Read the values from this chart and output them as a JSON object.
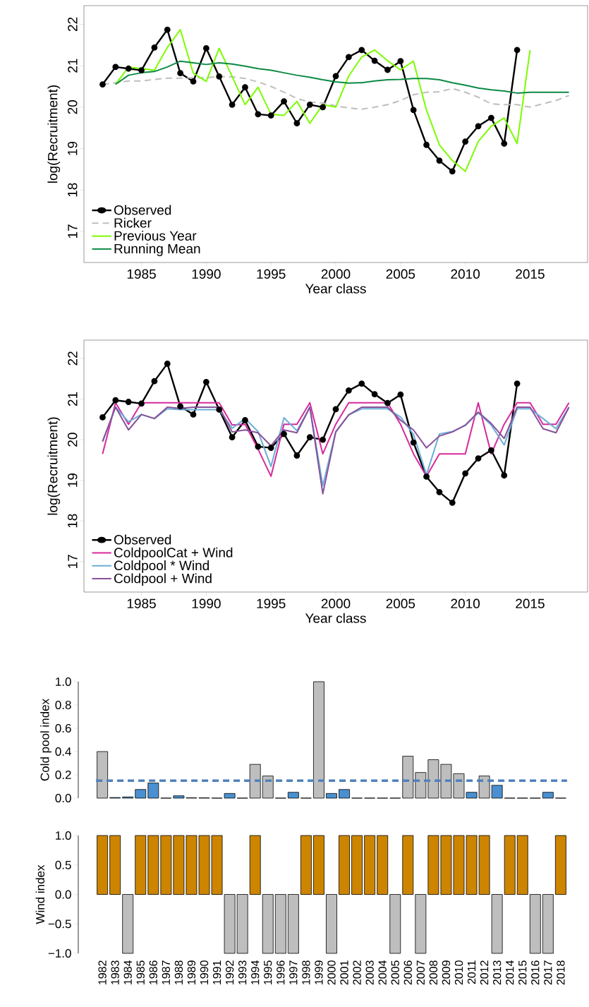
{
  "chart_data": [
    {
      "type": "line",
      "xlabel": "Year class",
      "ylabel": "log(Recruitment)",
      "legend": "bottom left",
      "x": [
        1982,
        1983,
        1984,
        1985,
        1986,
        1987,
        1988,
        1989,
        1990,
        1991,
        1992,
        1993,
        1994,
        1995,
        1996,
        1997,
        1998,
        1999,
        2000,
        2001,
        2002,
        2003,
        2004,
        2005,
        2006,
        2007,
        2008,
        2009,
        2010,
        2011,
        2012,
        2013,
        2014,
        2015,
        2016,
        2017,
        2018
      ],
      "xlim": [
        1980.56,
        2019.44
      ],
      "ylim": [
        16.25,
        22.45
      ],
      "xticks": [
        1985,
        1990,
        1995,
        2000,
        2005,
        2010,
        2015
      ],
      "yticks": [
        17,
        18,
        19,
        20,
        21,
        22
      ],
      "series": [
        {
          "name": "Observed",
          "color": "#000000",
          "marker": "circle",
          "x": [
            1982,
            1983,
            1984,
            1985,
            1986,
            1987,
            1988,
            1989,
            1990,
            1991,
            1992,
            1993,
            1994,
            1995,
            1996,
            1997,
            1998,
            1999,
            2000,
            2001,
            2002,
            2003,
            2004,
            2005,
            2006,
            2007,
            2008,
            2009,
            2010,
            2011,
            2012,
            2013,
            2014
          ],
          "values": [
            20.55,
            20.97,
            20.93,
            20.89,
            21.44,
            21.87,
            20.82,
            20.62,
            21.42,
            20.74,
            20.06,
            20.48,
            19.83,
            19.8,
            20.14,
            19.61,
            20.06,
            20.0,
            20.75,
            21.21,
            21.38,
            21.12,
            20.9,
            21.11,
            19.93,
            19.09,
            18.71,
            18.45,
            19.17,
            19.54,
            19.74,
            19.12,
            21.38
          ]
        },
        {
          "name": "Ricker",
          "color": "#bebebe",
          "line_style": "dashed",
          "values": [
            20.55,
            20.59,
            20.63,
            20.63,
            20.67,
            20.7,
            20.7,
            20.71,
            20.71,
            20.74,
            20.73,
            20.69,
            20.61,
            20.5,
            20.36,
            20.21,
            20.12,
            20.1,
            20.03,
            19.98,
            19.95,
            20.0,
            20.06,
            20.16,
            20.3,
            20.36,
            20.37,
            20.45,
            20.36,
            20.24,
            20.08,
            20.06,
            20.06,
            20.0,
            20.08,
            20.16,
            20.28
          ]
        },
        {
          "name": "Previous Year",
          "color": "#7cfc00",
          "x": [
            1983,
            1984,
            1985,
            1986,
            1987,
            1988,
            1989,
            1990,
            1991,
            1992,
            1993,
            1994,
            1995,
            1996,
            1997,
            1998,
            1999,
            2000,
            2001,
            2002,
            2003,
            2004,
            2005,
            2006,
            2007,
            2008,
            2009,
            2010,
            2011,
            2012,
            2013,
            2014,
            2015
          ],
          "values": [
            20.55,
            20.97,
            20.93,
            20.89,
            21.44,
            21.87,
            20.82,
            20.62,
            21.42,
            20.74,
            20.06,
            20.48,
            19.83,
            19.8,
            20.14,
            19.61,
            20.06,
            20.0,
            20.75,
            21.21,
            21.38,
            21.12,
            20.9,
            21.11,
            19.93,
            19.09,
            18.71,
            18.45,
            19.17,
            19.54,
            19.74,
            19.12,
            21.38
          ]
        },
        {
          "name": "Running Mean",
          "color": "#0c8a44",
          "x": [
            1983,
            1984,
            1985,
            1986,
            1987,
            1988,
            1989,
            1990,
            1991,
            1992,
            1993,
            1994,
            1995,
            1996,
            1997,
            1998,
            1999,
            2000,
            2001,
            2002,
            2003,
            2004,
            2005,
            2006,
            2007,
            2008,
            2009,
            2010,
            2011,
            2012,
            2013,
            2014,
            2015,
            2016,
            2017,
            2018
          ],
          "values": [
            20.55,
            20.77,
            20.83,
            20.86,
            20.97,
            21.11,
            21.07,
            21.03,
            21.07,
            21.04,
            20.99,
            20.93,
            20.89,
            20.83,
            20.77,
            20.72,
            20.66,
            20.61,
            20.58,
            20.59,
            20.63,
            20.66,
            20.67,
            20.69,
            20.69,
            20.66,
            20.59,
            20.53,
            20.46,
            20.42,
            20.39,
            20.34,
            20.36,
            20.36,
            20.36,
            20.36
          ]
        }
      ]
    },
    {
      "type": "line",
      "xlabel": "Year class",
      "ylabel": "log(Recruitment)",
      "legend": "bottom left",
      "x": [
        1982,
        1983,
        1984,
        1985,
        1986,
        1987,
        1988,
        1989,
        1990,
        1991,
        1992,
        1993,
        1994,
        1995,
        1996,
        1997,
        1998,
        1999,
        2000,
        2001,
        2002,
        2003,
        2004,
        2005,
        2006,
        2007,
        2008,
        2009,
        2010,
        2011,
        2012,
        2013,
        2014,
        2015,
        2016,
        2017,
        2018
      ],
      "xlim": [
        1980.56,
        2019.44
      ],
      "ylim": [
        16.25,
        22.45
      ],
      "xticks": [
        1985,
        1990,
        1995,
        2000,
        2005,
        2010,
        2015
      ],
      "yticks": [
        17,
        18,
        19,
        20,
        21,
        22
      ],
      "series": [
        {
          "name": "Observed",
          "color": "#000000",
          "marker": "circle",
          "x": [
            1982,
            1983,
            1984,
            1985,
            1986,
            1987,
            1988,
            1989,
            1990,
            1991,
            1992,
            1993,
            1994,
            1995,
            1996,
            1997,
            1998,
            1999,
            2000,
            2001,
            2002,
            2003,
            2004,
            2005,
            2006,
            2007,
            2008,
            2009,
            2010,
            2011,
            2012,
            2013,
            2014
          ],
          "values": [
            20.55,
            20.97,
            20.93,
            20.89,
            21.44,
            21.87,
            20.82,
            20.62,
            21.42,
            20.74,
            20.06,
            20.48,
            19.83,
            19.8,
            20.14,
            19.61,
            20.06,
            20.0,
            20.75,
            21.21,
            21.38,
            21.12,
            20.9,
            21.11,
            19.93,
            19.09,
            18.71,
            18.45,
            19.17,
            19.54,
            19.74,
            19.12,
            21.38
          ]
        },
        {
          "name": "ColdpoolCat + Wind",
          "color": "#d62a9c",
          "values": [
            19.65,
            20.91,
            20.38,
            20.91,
            20.91,
            20.91,
            20.91,
            20.91,
            20.91,
            20.91,
            20.36,
            20.38,
            19.77,
            19.1,
            20.38,
            20.38,
            20.91,
            19.65,
            20.38,
            20.91,
            20.91,
            20.91,
            20.91,
            20.38,
            19.65,
            19.1,
            19.65,
            19.65,
            19.65,
            20.91,
            19.65,
            20.38,
            20.91,
            20.91,
            20.38,
            20.38,
            20.91
          ]
        },
        {
          "name": "Coldpool * Wind",
          "color": "#6baed6",
          "values": [
            19.97,
            20.8,
            20.44,
            20.62,
            20.52,
            20.76,
            20.74,
            20.74,
            20.74,
            20.74,
            20.28,
            20.52,
            20.2,
            19.34,
            20.54,
            20.22,
            20.8,
            18.87,
            20.2,
            20.61,
            20.76,
            20.76,
            20.76,
            20.56,
            20.13,
            19.14,
            20.14,
            20.2,
            20.35,
            20.66,
            20.36,
            19.87,
            20.76,
            20.76,
            20.52,
            20.27,
            20.8
          ]
        },
        {
          "name": "Coldpool + Wind",
          "color": "#88519a",
          "values": [
            19.95,
            20.8,
            20.24,
            20.62,
            20.52,
            20.8,
            20.77,
            20.8,
            20.8,
            20.8,
            20.19,
            20.24,
            20.17,
            19.85,
            20.24,
            20.17,
            20.8,
            18.67,
            20.19,
            20.61,
            20.8,
            20.8,
            20.8,
            20.48,
            20.24,
            19.8,
            20.09,
            20.19,
            20.36,
            20.68,
            20.4,
            20.03,
            20.8,
            20.8,
            20.27,
            20.17,
            20.8
          ]
        }
      ]
    },
    {
      "type": "bar",
      "ylabel": "Cold pool index",
      "tick_labels": "y",
      "categories": [
        "1982",
        "1983",
        "1984",
        "1985",
        "1986",
        "1987",
        "1988",
        "1989",
        "1990",
        "1991",
        "1992",
        "1993",
        "1994",
        "1995",
        "1996",
        "1997",
        "1998",
        "1999",
        "2000",
        "2001",
        "2002",
        "2003",
        "2004",
        "2005",
        "2006",
        "2007",
        "2008",
        "2009",
        "2010",
        "2011",
        "2012",
        "2013",
        "2014",
        "2015",
        "2016",
        "2017",
        "2018"
      ],
      "values": [
        0.4,
        0.005,
        0.01,
        0.074,
        0.13,
        0,
        0.02,
        0.003,
        0.002,
        0,
        0.04,
        0,
        0.29,
        0.19,
        0,
        0.05,
        0,
        1.0,
        0.04,
        0.074,
        0,
        0,
        0,
        0,
        0.36,
        0.22,
        0.33,
        0.29,
        0.21,
        0.05,
        0.19,
        0.11,
        0,
        0,
        0,
        0.05,
        0
      ],
      "colors": [
        "#bebebe",
        "#4a90d0",
        "#4a90d0",
        "#4a90d0",
        "#4a90d0",
        "#4a90d0",
        "#4a90d0",
        "#4a90d0",
        "#4a90d0",
        "#4a90d0",
        "#4a90d0",
        "#4a90d0",
        "#bebebe",
        "#bebebe",
        "#4a90d0",
        "#4a90d0",
        "#4a90d0",
        "#bebebe",
        "#4a90d0",
        "#4a90d0",
        "#4a90d0",
        "#4a90d0",
        "#4a90d0",
        "#4a90d0",
        "#bebebe",
        "#bebebe",
        "#bebebe",
        "#bebebe",
        "#bebebe",
        "#4a90d0",
        "#bebebe",
        "#4a90d0",
        "#4a90d0",
        "#4a90d0",
        "#4a90d0",
        "#4a90d0",
        "#4a90d0"
      ],
      "ylim": [
        0,
        1
      ],
      "yticks": [
        {
          "value": 0,
          "label": "0.0"
        },
        {
          "value": 0.2,
          "label": "0.2"
        },
        {
          "value": 0.4,
          "label": "0.4"
        },
        {
          "value": 0.6,
          "label": "0.6"
        },
        {
          "value": 0.8,
          "label": "0.8"
        },
        {
          "value": 1,
          "label": "1.0"
        }
      ],
      "ref_lines": [
        {
          "axis": "y",
          "value": 0.15,
          "color": "#4f81bd",
          "line_style": "dashed"
        }
      ]
    },
    {
      "type": "bar",
      "ylabel": "Wind index",
      "categories": [
        "1982",
        "1983",
        "1984",
        "1985",
        "1986",
        "1987",
        "1988",
        "1989",
        "1990",
        "1991",
        "1992",
        "1993",
        "1994",
        "1995",
        "1996",
        "1997",
        "1998",
        "1999",
        "2000",
        "2001",
        "2002",
        "2003",
        "2004",
        "2005",
        "2006",
        "2007",
        "2008",
        "2009",
        "2010",
        "2011",
        "2012",
        "2013",
        "2014",
        "2015",
        "2016",
        "2017",
        "2018"
      ],
      "values": [
        1,
        1,
        -1,
        1,
        1,
        1,
        1,
        1,
        1,
        1,
        -1,
        -1,
        1,
        -1,
        -1,
        -1,
        1,
        1,
        -1,
        1,
        1,
        1,
        1,
        -1,
        1,
        -1,
        1,
        1,
        1,
        1,
        1,
        -1,
        1,
        1,
        -1,
        -1,
        1
      ],
      "colors": [
        "#cd8500",
        "#cd8500",
        "#bebebe",
        "#cd8500",
        "#cd8500",
        "#cd8500",
        "#cd8500",
        "#cd8500",
        "#cd8500",
        "#cd8500",
        "#bebebe",
        "#bebebe",
        "#cd8500",
        "#bebebe",
        "#bebebe",
        "#bebebe",
        "#cd8500",
        "#cd8500",
        "#bebebe",
        "#cd8500",
        "#cd8500",
        "#cd8500",
        "#cd8500",
        "#bebebe",
        "#cd8500",
        "#bebebe",
        "#cd8500",
        "#cd8500",
        "#cd8500",
        "#cd8500",
        "#cd8500",
        "#bebebe",
        "#cd8500",
        "#cd8500",
        "#bebebe",
        "#bebebe",
        "#cd8500"
      ],
      "ylim": [
        -1,
        1
      ],
      "yticks": [
        {
          "value": -1,
          "label": "−1.0"
        },
        {
          "value": -0.5,
          "label": "−0.5"
        },
        {
          "value": 0,
          "label": "0.0"
        },
        {
          "value": 0.5,
          "label": "0.5"
        },
        {
          "value": 1,
          "label": "1.0"
        }
      ]
    }
  ]
}
